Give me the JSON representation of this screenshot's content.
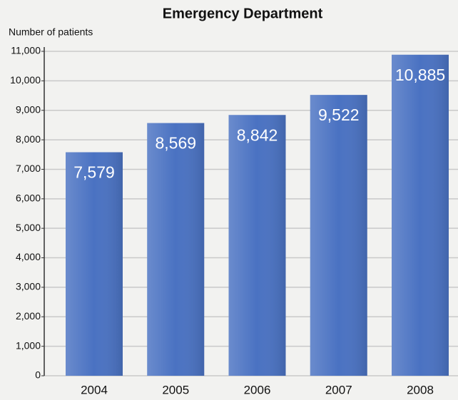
{
  "chart_data": {
    "type": "bar",
    "title": "Emergency Department",
    "y_label": "Number of patients",
    "categories": [
      "2004",
      "2005",
      "2006",
      "2007",
      "2008"
    ],
    "values": [
      7579,
      8569,
      8842,
      9522,
      10885
    ],
    "value_labels": [
      "7,579",
      "8,569",
      "8,842",
      "9,522",
      "10,885"
    ],
    "color": "#4a72c2",
    "ylim": [
      0,
      11000
    ],
    "yticks": [
      0,
      {
        "value": 1000,
        "label": "1,000"
      },
      {
        "value": 2000,
        "label": "2,000"
      },
      {
        "value": 3000,
        "label": "3,000"
      },
      {
        "value": 4000,
        "label": "4,000"
      },
      {
        "value": 5000,
        "label": "5,000"
      },
      {
        "value": 6000,
        "label": "6,000"
      },
      {
        "value": 7000,
        "label": "7,000"
      },
      {
        "value": 8000,
        "label": "8,000"
      },
      {
        "value": 9000,
        "label": "9,000"
      },
      {
        "value": 10000,
        "label": "10,000"
      },
      {
        "value": 11000,
        "label": "11,000"
      }
    ],
    "grid": true
  }
}
